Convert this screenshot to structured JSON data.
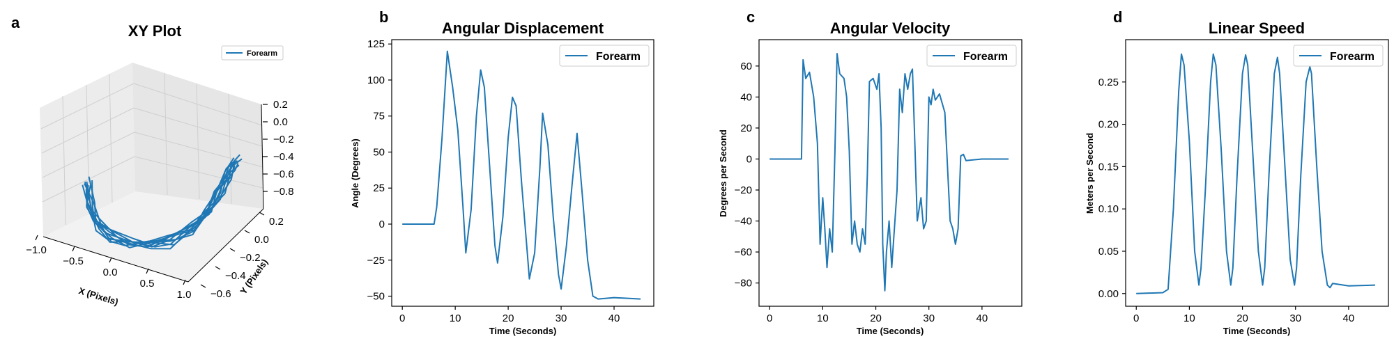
{
  "chart_data": [
    {
      "panel": "a",
      "type": "line",
      "projection": "3d",
      "title": "XY Plot",
      "xlabel": "X (Pixels)",
      "ylabel": "Y (Pixels)",
      "zlabel": "",
      "xlim": [
        -1.0,
        1.0
      ],
      "ylim": [
        -0.7,
        0.35
      ],
      "zlim": [
        -0.9,
        0.3
      ],
      "x_ticks": [
        "−1.0",
        "−0.5",
        "0.0",
        "0.5",
        "1.0"
      ],
      "y_ticks": [
        "−0.6",
        "−0.4",
        "−0.2",
        "0.0",
        "0.2"
      ],
      "z_ticks": [
        "0.2",
        "0.0",
        "−0.2",
        "−0.4",
        "−0.6",
        "−0.8"
      ],
      "legend": {
        "position": "upper-right",
        "entries": [
          "Forearm"
        ]
      },
      "series": [
        {
          "name": "Forearm",
          "color": "#1f77b4",
          "shape": "repeated U-shaped arm trajectory, about 10 overlapping loops",
          "x": [
            -0.65,
            -0.62,
            -0.55,
            -0.42,
            -0.25,
            -0.05,
            0.15,
            0.35,
            0.5,
            0.62,
            0.72,
            0.78
          ],
          "z": [
            -0.05,
            -0.3,
            -0.52,
            -0.68,
            -0.76,
            -0.78,
            -0.74,
            -0.6,
            -0.4,
            -0.15,
            0.08,
            0.22
          ]
        }
      ]
    },
    {
      "panel": "b",
      "type": "line",
      "title": "Angular Displacement",
      "xlabel": "Time (Seconds)",
      "ylabel": "Angle (Degrees)",
      "xlim": [
        -2,
        47.5
      ],
      "ylim": [
        -57,
        128
      ],
      "x_ticks": [
        0,
        10,
        20,
        30,
        40
      ],
      "y_ticks": [
        -50,
        -25,
        0,
        25,
        50,
        75,
        100,
        125
      ],
      "legend": {
        "position": "upper-right",
        "entries": [
          "Forearm"
        ]
      },
      "series": [
        {
          "name": "Forearm",
          "color": "#1f77b4",
          "x": [
            0,
            6,
            6.5,
            7.5,
            8.5,
            9.5,
            10.5,
            11.5,
            12,
            13,
            14,
            14.8,
            15.5,
            16.5,
            17.5,
            18,
            19,
            20,
            20.8,
            21.5,
            22.5,
            23.5,
            24,
            25,
            26,
            26.5,
            27.5,
            28.5,
            29.5,
            30,
            31,
            32,
            33,
            34,
            35,
            36,
            37,
            40,
            45
          ],
          "y": [
            0,
            0,
            12,
            60,
            120,
            95,
            65,
            10,
            -20,
            10,
            75,
            107,
            95,
            40,
            -15,
            -27,
            5,
            60,
            88,
            82,
            30,
            -15,
            -38,
            -20,
            40,
            77,
            55,
            5,
            -35,
            -45,
            -15,
            25,
            63,
            20,
            -25,
            -50,
            -52,
            -51,
            -52
          ]
        }
      ]
    },
    {
      "panel": "c",
      "type": "line",
      "title": "Angular Velocity",
      "xlabel": "Time (Seconds)",
      "ylabel": "Degrees per Second",
      "xlim": [
        -2,
        47.5
      ],
      "ylim": [
        -95,
        77
      ],
      "x_ticks": [
        0,
        10,
        20,
        30,
        40
      ],
      "y_ticks": [
        -80,
        -60,
        -40,
        -20,
        0,
        20,
        40,
        60
      ],
      "legend": {
        "position": "upper-right",
        "entries": [
          "Forearm"
        ]
      },
      "series": [
        {
          "name": "Forearm",
          "color": "#1f77b4",
          "x": [
            0,
            3,
            6,
            6.3,
            6.8,
            7.5,
            8.3,
            9,
            9.5,
            10,
            10.4,
            10.8,
            11.3,
            11.8,
            12.3,
            12.7,
            13.2,
            14,
            14.5,
            15,
            15.5,
            16,
            16.5,
            17,
            17.5,
            18,
            18.4,
            18.8,
            19.5,
            20.2,
            20.6,
            21,
            21.3,
            21.7,
            22,
            22.5,
            23,
            23.5,
            24,
            24.5,
            25,
            25.5,
            26,
            26.5,
            26.9,
            27.3,
            27.8,
            28.5,
            29,
            29.5,
            30,
            30.4,
            30.8,
            31.2,
            32,
            33,
            34,
            34.5,
            35,
            35.5,
            36,
            36.5,
            37,
            40,
            45
          ],
          "y": [
            0,
            0,
            0,
            64,
            52,
            56,
            40,
            10,
            -55,
            -25,
            -45,
            -70,
            -45,
            -60,
            5,
            68,
            55,
            52,
            40,
            5,
            -55,
            -40,
            -55,
            -60,
            -45,
            -55,
            -10,
            50,
            52,
            45,
            55,
            20,
            -55,
            -85,
            -60,
            -40,
            -70,
            -45,
            -20,
            45,
            30,
            55,
            45,
            55,
            58,
            15,
            -40,
            -25,
            -45,
            -40,
            40,
            35,
            45,
            38,
            42,
            30,
            -40,
            -45,
            -55,
            -45,
            2,
            3,
            -1,
            0,
            0
          ]
        }
      ]
    },
    {
      "panel": "d",
      "type": "line",
      "title": "Linear Speed",
      "xlabel": "Time (Seconds)",
      "ylabel": "Meters per Second",
      "xlim": [
        -2,
        47.5
      ],
      "ylim": [
        -0.015,
        0.3
      ],
      "x_ticks": [
        0,
        10,
        20,
        30,
        40
      ],
      "y_ticks": [
        "0.00",
        "0.05",
        "0.10",
        "0.15",
        "0.20",
        "0.25"
      ],
      "legend": {
        "position": "upper-right",
        "entries": [
          "Forearm"
        ]
      },
      "series": [
        {
          "name": "Forearm",
          "color": "#1f77b4",
          "x": [
            0,
            5,
            6,
            7,
            8,
            8.5,
            9,
            10,
            11,
            11.8,
            12.2,
            13,
            14,
            14.5,
            15,
            16,
            17,
            17.8,
            18.2,
            19,
            20,
            20.6,
            21,
            22,
            23,
            23.8,
            24.2,
            25,
            26,
            26.6,
            27,
            28,
            29,
            29.8,
            30.2,
            31,
            32,
            32.7,
            33,
            34,
            35,
            36,
            36.5,
            37,
            40,
            45
          ],
          "y": [
            0,
            0.001,
            0.005,
            0.1,
            0.24,
            0.283,
            0.27,
            0.18,
            0.05,
            0.01,
            0.03,
            0.12,
            0.25,
            0.283,
            0.27,
            0.17,
            0.05,
            0.01,
            0.03,
            0.14,
            0.26,
            0.282,
            0.27,
            0.16,
            0.05,
            0.01,
            0.03,
            0.14,
            0.26,
            0.279,
            0.26,
            0.15,
            0.04,
            0.01,
            0.03,
            0.14,
            0.25,
            0.268,
            0.26,
            0.15,
            0.05,
            0.01,
            0.007,
            0.012,
            0.009,
            0.01
          ]
        }
      ]
    }
  ]
}
